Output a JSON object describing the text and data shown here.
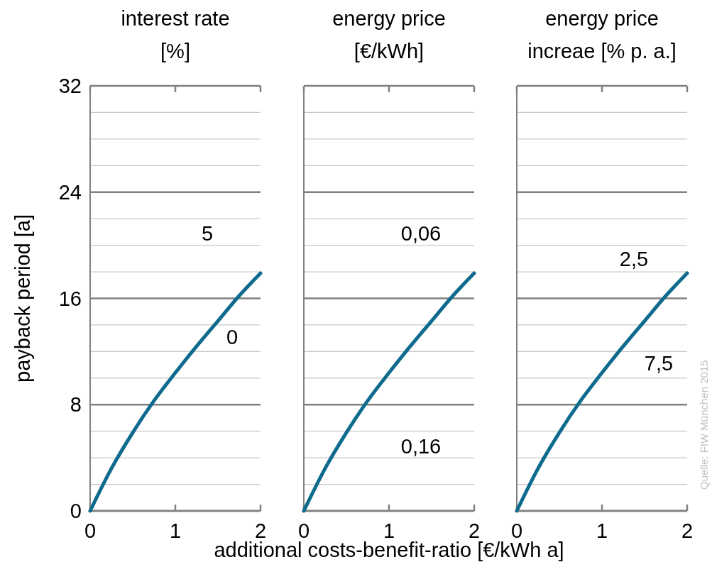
{
  "chart_data": [
    {
      "type": "line",
      "title": "interest rate\n[%]",
      "ylabel": "payback period [a]",
      "x": [
        0,
        0.25,
        0.5,
        0.75,
        1,
        1.25,
        1.5,
        1.75,
        2
      ],
      "series": [
        {
          "color": "#0f6b8e",
          "values": [
            0,
            3.2,
            5.9,
            8.3,
            10.4,
            12.4,
            14.3,
            16.2,
            17.9
          ]
        }
      ],
      "xlim": [
        0,
        2
      ],
      "xticks": [
        0,
        1,
        2
      ],
      "ylim": [
        0,
        32
      ],
      "yticks": [
        0,
        {
          "value": 2,
          "label": null
        },
        {
          "value": 4,
          "label": null
        },
        {
          "value": 6,
          "label": null
        },
        8,
        {
          "value": 10,
          "label": null
        },
        {
          "value": 12,
          "label": null
        },
        {
          "value": 14,
          "label": null
        },
        16,
        {
          "value": 18,
          "label": null
        },
        {
          "value": 20,
          "label": null
        },
        {
          "value": 22,
          "label": null
        },
        24,
        {
          "value": 26,
          "label": null
        },
        {
          "value": 28,
          "label": null
        },
        {
          "value": 30,
          "label": null
        },
        32
      ],
      "grid": "y",
      "annotations": [
        "5",
        "0"
      ]
    },
    {
      "type": "line",
      "title": "energy price\n[€/kWh]",
      "xlabel": "additional costs-benefit-ratio [€/kWh a]",
      "x": [
        0,
        0.25,
        0.5,
        0.75,
        1,
        1.25,
        1.5,
        1.75,
        2
      ],
      "series": [
        {
          "color": "#0f6b8e",
          "values": [
            0,
            3.2,
            5.9,
            8.3,
            10.4,
            12.4,
            14.3,
            16.2,
            17.9
          ]
        }
      ],
      "xlim": [
        0,
        2
      ],
      "xticks": [
        0,
        1,
        2
      ],
      "ylim": [
        0,
        32
      ],
      "yticks": [
        0,
        {
          "value": 2,
          "label": null
        },
        {
          "value": 4,
          "label": null
        },
        {
          "value": 6,
          "label": null
        },
        8,
        {
          "value": 10,
          "label": null
        },
        {
          "value": 12,
          "label": null
        },
        {
          "value": 14,
          "label": null
        },
        16,
        {
          "value": 18,
          "label": null
        },
        {
          "value": 20,
          "label": null
        },
        {
          "value": 22,
          "label": null
        },
        24,
        {
          "value": 26,
          "label": null
        },
        {
          "value": 28,
          "label": null
        },
        {
          "value": 30,
          "label": null
        },
        32
      ],
      "grid": "y",
      "tick_labels": "x",
      "annotations": [
        "0,06",
        "0,16"
      ]
    },
    {
      "type": "line",
      "title": "energy price\nincreae [% p. a.]",
      "x": [
        0,
        0.25,
        0.5,
        0.75,
        1,
        1.25,
        1.5,
        1.75,
        2
      ],
      "series": [
        {
          "color": "#0f6b8e",
          "values": [
            0,
            3.2,
            5.9,
            8.3,
            10.4,
            12.4,
            14.3,
            16.2,
            17.9
          ]
        }
      ],
      "xlim": [
        0,
        2
      ],
      "xticks": [
        0,
        1,
        2
      ],
      "ylim": [
        0,
        32
      ],
      "yticks": [
        0,
        {
          "value": 2,
          "label": null
        },
        {
          "value": 4,
          "label": null
        },
        {
          "value": 6,
          "label": null
        },
        8,
        {
          "value": 10,
          "label": null
        },
        {
          "value": 12,
          "label": null
        },
        {
          "value": 14,
          "label": null
        },
        16,
        {
          "value": 18,
          "label": null
        },
        {
          "value": 20,
          "label": null
        },
        {
          "value": 22,
          "label": null
        },
        24,
        {
          "value": 26,
          "label": null
        },
        {
          "value": 28,
          "label": null
        },
        {
          "value": 30,
          "label": null
        },
        32
      ],
      "grid": "y",
      "tick_labels": "x",
      "annotations": [
        "2,5",
        "7,5",
        "Quelle: FIW München 2015"
      ]
    }
  ]
}
